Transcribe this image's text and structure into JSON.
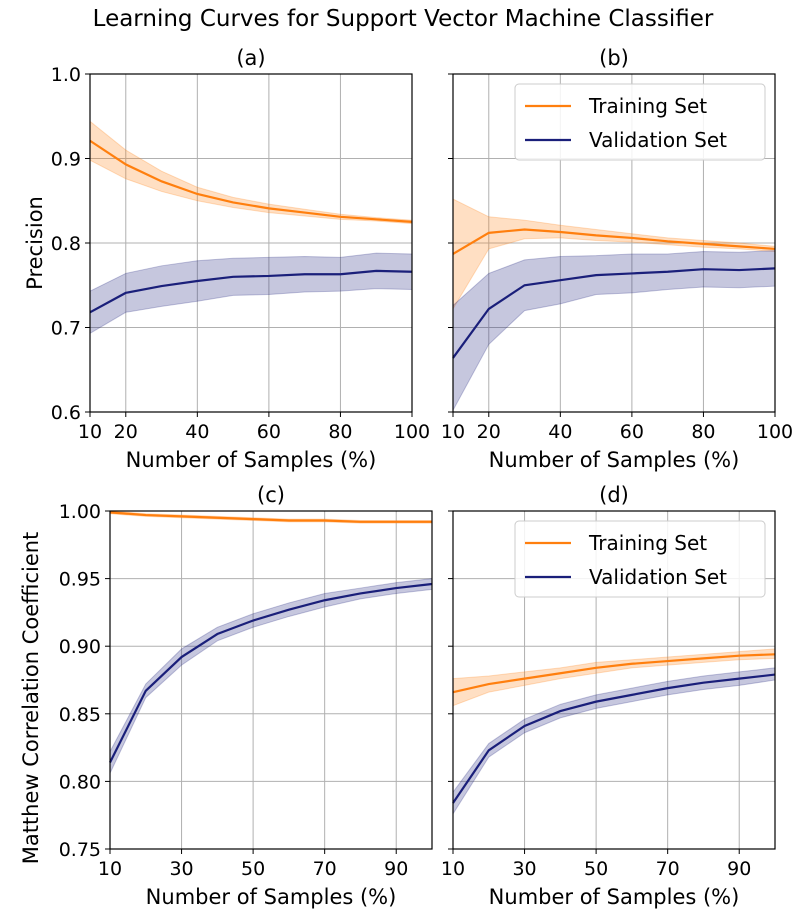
{
  "figure": {
    "title": "Learning Curves for Support Vector Machine Classifier",
    "colors": {
      "training": "#ff7f0e",
      "validation": "#1a1f7a"
    }
  },
  "chart_data": [
    {
      "type": "line",
      "panel": "(a)",
      "xlabel": "Number of Samples (%)",
      "ylabel": "Precision",
      "xlim": [
        10,
        100
      ],
      "ylim": [
        0.6,
        1.0
      ],
      "xticks": [
        10,
        20,
        40,
        60,
        80,
        100
      ],
      "yticks": [
        0.6,
        0.7,
        0.8,
        0.9,
        1.0
      ],
      "ytick_labels": [
        "0.6",
        "0.7",
        "0.8",
        "0.9",
        "1.0"
      ],
      "grid": true,
      "legend": null,
      "x": [
        10,
        20,
        30,
        40,
        50,
        60,
        70,
        80,
        90,
        100
      ],
      "series": [
        {
          "name": "Training Set",
          "values": [
            0.921,
            0.893,
            0.873,
            0.858,
            0.848,
            0.841,
            0.836,
            0.831,
            0.828,
            0.825
          ],
          "lower": [
            0.898,
            0.876,
            0.861,
            0.85,
            0.842,
            0.836,
            0.832,
            0.828,
            0.826,
            0.823
          ],
          "upper": [
            0.944,
            0.91,
            0.885,
            0.866,
            0.854,
            0.846,
            0.84,
            0.834,
            0.83,
            0.827
          ]
        },
        {
          "name": "Validation Set",
          "values": [
            0.718,
            0.741,
            0.749,
            0.755,
            0.76,
            0.761,
            0.763,
            0.763,
            0.767,
            0.766
          ],
          "lower": [
            0.693,
            0.718,
            0.725,
            0.731,
            0.738,
            0.739,
            0.742,
            0.743,
            0.746,
            0.745
          ],
          "upper": [
            0.743,
            0.764,
            0.773,
            0.779,
            0.782,
            0.783,
            0.784,
            0.783,
            0.788,
            0.787
          ]
        }
      ]
    },
    {
      "type": "line",
      "panel": "(b)",
      "xlabel": "Number of Samples (%)",
      "ylabel": "",
      "xlim": [
        10,
        100
      ],
      "ylim": [
        0.6,
        1.0
      ],
      "xticks": [
        10,
        20,
        40,
        60,
        80,
        100
      ],
      "yticks": [
        0.6,
        0.7,
        0.8,
        0.9,
        1.0
      ],
      "ytick_labels": [],
      "grid": true,
      "legend": "upper right",
      "x": [
        10,
        20,
        30,
        40,
        50,
        60,
        70,
        80,
        90,
        100
      ],
      "series": [
        {
          "name": "Training Set",
          "values": [
            0.787,
            0.812,
            0.816,
            0.813,
            0.809,
            0.806,
            0.802,
            0.799,
            0.796,
            0.793
          ],
          "lower": [
            0.722,
            0.793,
            0.805,
            0.806,
            0.803,
            0.801,
            0.798,
            0.795,
            0.793,
            0.79
          ],
          "upper": [
            0.852,
            0.831,
            0.827,
            0.821,
            0.816,
            0.811,
            0.806,
            0.803,
            0.8,
            0.796
          ]
        },
        {
          "name": "Validation Set",
          "values": [
            0.664,
            0.722,
            0.75,
            0.756,
            0.762,
            0.764,
            0.766,
            0.769,
            0.768,
            0.77
          ],
          "lower": [
            0.602,
            0.68,
            0.72,
            0.728,
            0.739,
            0.741,
            0.745,
            0.748,
            0.747,
            0.749
          ],
          "upper": [
            0.726,
            0.764,
            0.78,
            0.784,
            0.785,
            0.787,
            0.787,
            0.79,
            0.789,
            0.791
          ]
        }
      ]
    },
    {
      "type": "line",
      "panel": "(c)",
      "xlabel": "Number of Samples (%)",
      "ylabel": "Matthew Correlation Coefficient",
      "xlim": [
        10,
        100
      ],
      "ylim": [
        0.75,
        1.0
      ],
      "xticks": [
        10,
        30,
        50,
        70,
        90
      ],
      "yticks": [
        0.75,
        0.8,
        0.85,
        0.9,
        0.95,
        1.0
      ],
      "ytick_labels": [
        "0.75",
        "0.80",
        "0.85",
        "0.90",
        "0.95",
        "1.00"
      ],
      "grid": true,
      "legend": null,
      "x": [
        10,
        20,
        30,
        40,
        50,
        60,
        70,
        80,
        90,
        100
      ],
      "series": [
        {
          "name": "Training Set",
          "values": [
            0.999,
            0.997,
            0.996,
            0.995,
            0.994,
            0.993,
            0.993,
            0.992,
            0.992,
            0.992
          ],
          "lower": [
            0.998,
            0.996,
            0.995,
            0.994,
            0.993,
            0.992,
            0.992,
            0.991,
            0.991,
            0.991
          ],
          "upper": [
            1.0,
            0.998,
            0.997,
            0.996,
            0.995,
            0.994,
            0.994,
            0.993,
            0.993,
            0.993
          ]
        },
        {
          "name": "Validation Set",
          "values": [
            0.814,
            0.867,
            0.892,
            0.909,
            0.919,
            0.927,
            0.934,
            0.939,
            0.943,
            0.946
          ],
          "lower": [
            0.806,
            0.862,
            0.886,
            0.904,
            0.914,
            0.922,
            0.929,
            0.935,
            0.939,
            0.942
          ],
          "upper": [
            0.822,
            0.872,
            0.898,
            0.914,
            0.924,
            0.932,
            0.939,
            0.943,
            0.947,
            0.95
          ]
        }
      ]
    },
    {
      "type": "line",
      "panel": "(d)",
      "xlabel": "Number of Samples (%)",
      "ylabel": "",
      "xlim": [
        10,
        100
      ],
      "ylim": [
        0.75,
        1.0
      ],
      "xticks": [
        10,
        30,
        50,
        70,
        90
      ],
      "yticks": [
        0.75,
        0.8,
        0.85,
        0.9,
        0.95,
        1.0
      ],
      "ytick_labels": [],
      "grid": true,
      "legend": "upper right",
      "x": [
        10,
        20,
        30,
        40,
        50,
        60,
        70,
        80,
        90,
        100
      ],
      "series": [
        {
          "name": "Training Set",
          "values": [
            0.866,
            0.872,
            0.876,
            0.88,
            0.884,
            0.887,
            0.889,
            0.891,
            0.893,
            0.894
          ],
          "lower": [
            0.856,
            0.866,
            0.871,
            0.876,
            0.88,
            0.884,
            0.886,
            0.888,
            0.89,
            0.891
          ],
          "upper": [
            0.876,
            0.878,
            0.881,
            0.884,
            0.888,
            0.89,
            0.892,
            0.894,
            0.896,
            0.898
          ]
        },
        {
          "name": "Validation Set",
          "values": [
            0.784,
            0.823,
            0.841,
            0.852,
            0.859,
            0.864,
            0.869,
            0.873,
            0.876,
            0.879
          ],
          "lower": [
            0.776,
            0.818,
            0.836,
            0.847,
            0.854,
            0.859,
            0.864,
            0.868,
            0.871,
            0.875
          ],
          "upper": [
            0.792,
            0.828,
            0.846,
            0.857,
            0.864,
            0.869,
            0.874,
            0.878,
            0.881,
            0.884
          ]
        }
      ]
    }
  ]
}
